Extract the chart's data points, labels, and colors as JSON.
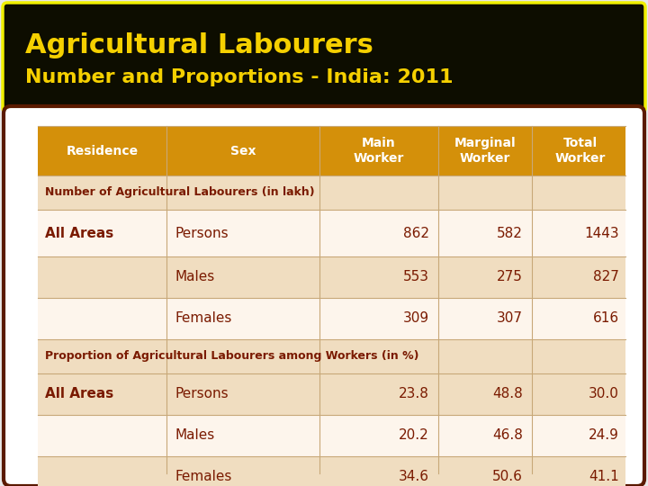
{
  "title_line1": "Agricultural Labourers",
  "title_line2": "Number and Proportions - India: 2011",
  "title_bg": "#0d0d00",
  "title_color": "#f5d000",
  "title_border": "#f0f000",
  "table_bg": "#ffffff",
  "table_border": "#5a1a00",
  "header_bg": "#d4900a",
  "header_color": "#ffffff",
  "header_labels": [
    "Residence",
    "Sex",
    "Main\nWorker",
    "Marginal\nWorker",
    "Total\nWorker"
  ],
  "section1_label": "Number of Agricultural Labourers (in lakh)",
  "section2_label": "Proportion of Agricultural Labourers among Workers (in %)",
  "section_bg": "#f0ddc0",
  "row_bg_white": "#fdf5ec",
  "row_bg_tan": "#f0ddc0",
  "data_color": "#7a1a00",
  "label_color": "#7a1a00",
  "rows": [
    [
      "All Areas",
      "Persons",
      "862",
      "582",
      "1443"
    ],
    [
      "",
      "Males",
      "553",
      "275",
      "827"
    ],
    [
      "",
      "Females",
      "309",
      "307",
      "616"
    ],
    [
      "All Areas",
      "Persons",
      "23.8",
      "48.8",
      "30.0"
    ],
    [
      "",
      "Males",
      "20.2",
      "46.8",
      "24.9"
    ],
    [
      "",
      "Females",
      "34.6",
      "50.6",
      "41.1"
    ]
  ],
  "outer_bg": "#e8e8e8",
  "title_fs1": 22,
  "title_fs2": 16,
  "header_fs": 10,
  "section_fs": 9,
  "data_fs": 11
}
